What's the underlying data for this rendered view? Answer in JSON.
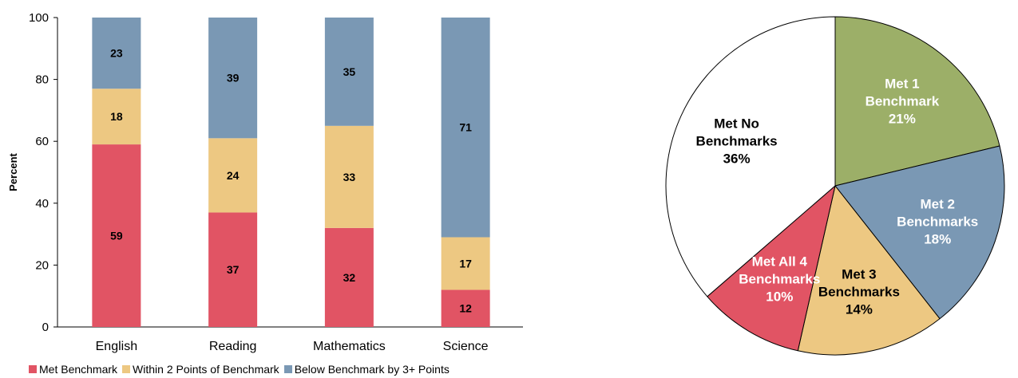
{
  "chart_data": [
    {
      "type": "bar",
      "stacked": true,
      "title": "",
      "xlabel": "",
      "ylabel": "Percent",
      "ylim": [
        0,
        100
      ],
      "yticks": [
        0,
        20,
        40,
        60,
        80,
        100
      ],
      "categories": [
        "English",
        "Reading",
        "Mathematics",
        "Science"
      ],
      "series": [
        {
          "name": "Met Benchmark",
          "color": "#e15464",
          "values": [
            59,
            37,
            32,
            12
          ]
        },
        {
          "name": "Within 2 Points of Benchmark",
          "color": "#edc882",
          "values": [
            18,
            24,
            33,
            17
          ]
        },
        {
          "name": "Below Benchmark by 3+ Points",
          "color": "#7a98b4",
          "values": [
            23,
            39,
            35,
            71
          ]
        }
      ],
      "legend_position": "bottom"
    },
    {
      "type": "pie",
      "title": "",
      "slices": [
        {
          "label_lines": [
            "Met 1",
            "Benchmark"
          ],
          "value": 21,
          "value_label": "21%",
          "color": "#9caf68",
          "text_color": "#ffffff"
        },
        {
          "label_lines": [
            "Met 2",
            "Benchmarks"
          ],
          "value": 18,
          "value_label": "18%",
          "color": "#7a98b4",
          "text_color": "#ffffff"
        },
        {
          "label_lines": [
            "Met 3",
            "Benchmarks"
          ],
          "value": 14,
          "value_label": "14%",
          "color": "#edc882",
          "text_color": "#000000"
        },
        {
          "label_lines": [
            "Met All 4",
            "Benchmarks"
          ],
          "value": 10,
          "value_label": "10%",
          "color": "#e15464",
          "text_color": "#ffffff"
        },
        {
          "label_lines": [
            "Met No",
            "Benchmarks"
          ],
          "value": 36,
          "value_label": "36%",
          "color": "#ffffff",
          "text_color": "#000000"
        }
      ]
    }
  ]
}
